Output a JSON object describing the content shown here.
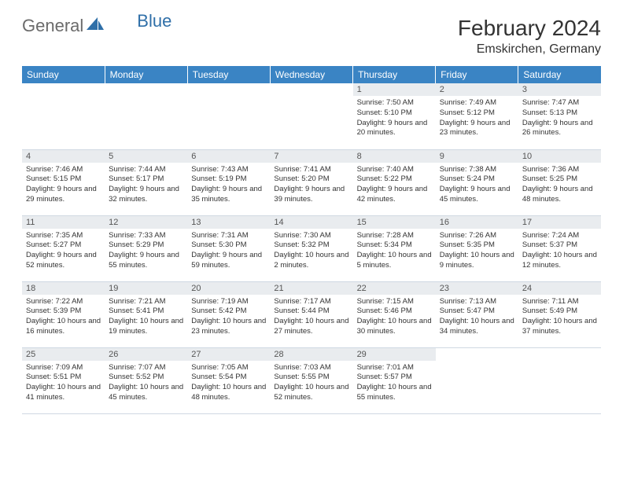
{
  "brand": {
    "part1": "General",
    "part2": "Blue"
  },
  "title": "February 2024",
  "location": "Emskirchen, Germany",
  "colors": {
    "header_bg": "#3a84c4",
    "header_text": "#ffffff",
    "daynum_bg": "#e9ecef",
    "row_divider": "#cfd8e2",
    "brand_gray": "#6b6b6b",
    "brand_blue": "#2f6fa8"
  },
  "weekdays": [
    "Sunday",
    "Monday",
    "Tuesday",
    "Wednesday",
    "Thursday",
    "Friday",
    "Saturday"
  ],
  "first_weekday_index": 4,
  "days": [
    {
      "n": 1,
      "sr": "7:50 AM",
      "ss": "5:10 PM",
      "dl": "9 hours and 20 minutes."
    },
    {
      "n": 2,
      "sr": "7:49 AM",
      "ss": "5:12 PM",
      "dl": "9 hours and 23 minutes."
    },
    {
      "n": 3,
      "sr": "7:47 AM",
      "ss": "5:13 PM",
      "dl": "9 hours and 26 minutes."
    },
    {
      "n": 4,
      "sr": "7:46 AM",
      "ss": "5:15 PM",
      "dl": "9 hours and 29 minutes."
    },
    {
      "n": 5,
      "sr": "7:44 AM",
      "ss": "5:17 PM",
      "dl": "9 hours and 32 minutes."
    },
    {
      "n": 6,
      "sr": "7:43 AM",
      "ss": "5:19 PM",
      "dl": "9 hours and 35 minutes."
    },
    {
      "n": 7,
      "sr": "7:41 AM",
      "ss": "5:20 PM",
      "dl": "9 hours and 39 minutes."
    },
    {
      "n": 8,
      "sr": "7:40 AM",
      "ss": "5:22 PM",
      "dl": "9 hours and 42 minutes."
    },
    {
      "n": 9,
      "sr": "7:38 AM",
      "ss": "5:24 PM",
      "dl": "9 hours and 45 minutes."
    },
    {
      "n": 10,
      "sr": "7:36 AM",
      "ss": "5:25 PM",
      "dl": "9 hours and 48 minutes."
    },
    {
      "n": 11,
      "sr": "7:35 AM",
      "ss": "5:27 PM",
      "dl": "9 hours and 52 minutes."
    },
    {
      "n": 12,
      "sr": "7:33 AM",
      "ss": "5:29 PM",
      "dl": "9 hours and 55 minutes."
    },
    {
      "n": 13,
      "sr": "7:31 AM",
      "ss": "5:30 PM",
      "dl": "9 hours and 59 minutes."
    },
    {
      "n": 14,
      "sr": "7:30 AM",
      "ss": "5:32 PM",
      "dl": "10 hours and 2 minutes."
    },
    {
      "n": 15,
      "sr": "7:28 AM",
      "ss": "5:34 PM",
      "dl": "10 hours and 5 minutes."
    },
    {
      "n": 16,
      "sr": "7:26 AM",
      "ss": "5:35 PM",
      "dl": "10 hours and 9 minutes."
    },
    {
      "n": 17,
      "sr": "7:24 AM",
      "ss": "5:37 PM",
      "dl": "10 hours and 12 minutes."
    },
    {
      "n": 18,
      "sr": "7:22 AM",
      "ss": "5:39 PM",
      "dl": "10 hours and 16 minutes."
    },
    {
      "n": 19,
      "sr": "7:21 AM",
      "ss": "5:41 PM",
      "dl": "10 hours and 19 minutes."
    },
    {
      "n": 20,
      "sr": "7:19 AM",
      "ss": "5:42 PM",
      "dl": "10 hours and 23 minutes."
    },
    {
      "n": 21,
      "sr": "7:17 AM",
      "ss": "5:44 PM",
      "dl": "10 hours and 27 minutes."
    },
    {
      "n": 22,
      "sr": "7:15 AM",
      "ss": "5:46 PM",
      "dl": "10 hours and 30 minutes."
    },
    {
      "n": 23,
      "sr": "7:13 AM",
      "ss": "5:47 PM",
      "dl": "10 hours and 34 minutes."
    },
    {
      "n": 24,
      "sr": "7:11 AM",
      "ss": "5:49 PM",
      "dl": "10 hours and 37 minutes."
    },
    {
      "n": 25,
      "sr": "7:09 AM",
      "ss": "5:51 PM",
      "dl": "10 hours and 41 minutes."
    },
    {
      "n": 26,
      "sr": "7:07 AM",
      "ss": "5:52 PM",
      "dl": "10 hours and 45 minutes."
    },
    {
      "n": 27,
      "sr": "7:05 AM",
      "ss": "5:54 PM",
      "dl": "10 hours and 48 minutes."
    },
    {
      "n": 28,
      "sr": "7:03 AM",
      "ss": "5:55 PM",
      "dl": "10 hours and 52 minutes."
    },
    {
      "n": 29,
      "sr": "7:01 AM",
      "ss": "5:57 PM",
      "dl": "10 hours and 55 minutes."
    }
  ],
  "labels": {
    "sunrise": "Sunrise:",
    "sunset": "Sunset:",
    "daylight": "Daylight:"
  }
}
